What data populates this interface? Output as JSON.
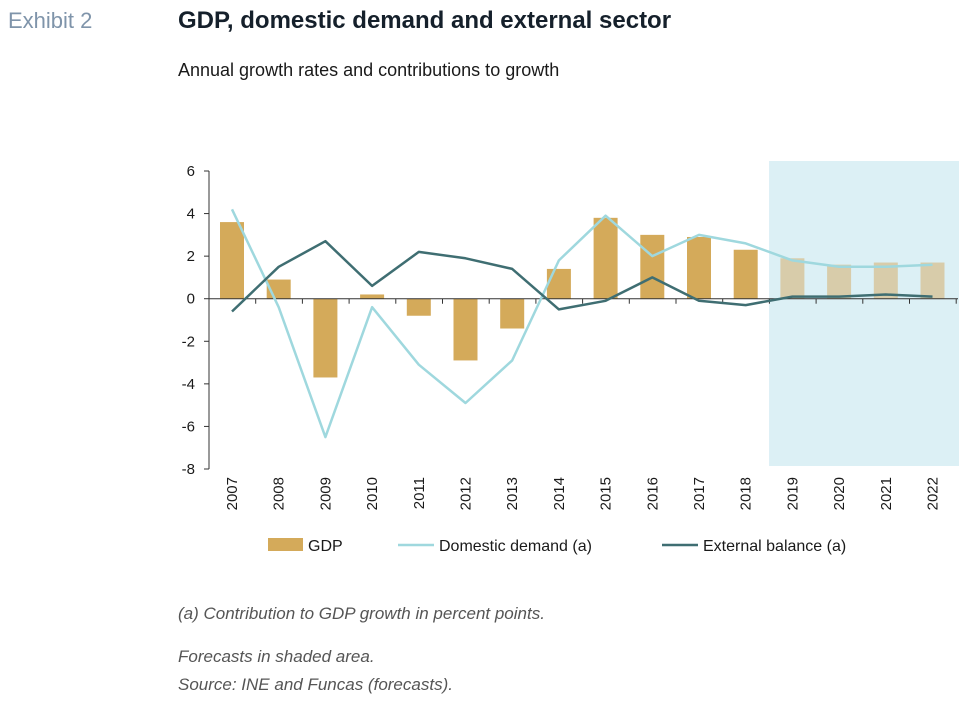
{
  "header": {
    "exhibit": "Exhibit 2",
    "title": "GDP, domestic demand and external sector",
    "subtitle": "Annual growth rates and contributions to growth"
  },
  "notes": {
    "contribution_note": "(a) Contribution to GDP growth in percent points.",
    "forecast_note": "Forecasts in shaded area.",
    "source_note": "Source: INE and Funcas (forecasts)."
  },
  "colors": {
    "gdp_bar": "#d4aa5a",
    "gdp_bar_forecast": "#d8ccaa",
    "domestic_line": "#9fd8de",
    "external_line": "#3f6e72",
    "forecast_shade": "#dcf0f5",
    "axis": "#333333"
  },
  "chart_data": {
    "type": "bar",
    "categories": [
      "2007",
      "2008",
      "2009",
      "2010",
      "2011",
      "2012",
      "2013",
      "2014",
      "2015",
      "2016",
      "2017",
      "2018",
      "2019",
      "2020",
      "2021",
      "2022"
    ],
    "ylim": [
      -8,
      6
    ],
    "yticks": [
      -8,
      -6,
      -4,
      -2,
      0,
      2,
      4,
      6
    ],
    "ytick_labels": [
      "-8",
      "-6",
      "-4",
      "-2",
      "0",
      "2",
      "4",
      "6"
    ],
    "forecast_start": "2019",
    "legend_position": "bottom",
    "series": [
      {
        "name": "GDP",
        "type": "bar",
        "values": [
          3.6,
          0.9,
          -3.7,
          0.2,
          -0.8,
          -2.9,
          -1.4,
          1.4,
          3.8,
          3.0,
          2.9,
          2.3,
          1.9,
          1.6,
          1.7,
          1.7
        ]
      },
      {
        "name": "Domestic demand (a)",
        "type": "line",
        "values": [
          4.2,
          -0.4,
          -6.5,
          -0.4,
          -3.1,
          -4.9,
          -2.9,
          1.8,
          3.9,
          2.0,
          3.0,
          2.6,
          1.8,
          1.5,
          1.5,
          1.6
        ]
      },
      {
        "name": "External balance (a)",
        "type": "line",
        "values": [
          -0.6,
          1.5,
          2.7,
          0.6,
          2.2,
          1.9,
          1.4,
          -0.5,
          -0.1,
          1.0,
          -0.1,
          -0.3,
          0.1,
          0.1,
          0.2,
          0.1
        ]
      }
    ]
  }
}
